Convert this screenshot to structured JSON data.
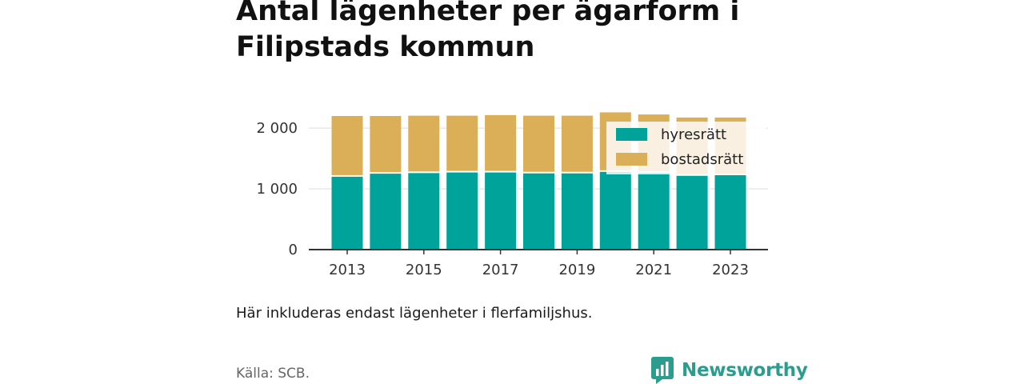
{
  "title": "Antal lägenheter per ägarform i Filipstads kommun",
  "note": "Här inkluderas endast lägenheter i flerfamiljshus.",
  "source": "Källa: SCB.",
  "brand": {
    "name": "Newsworthy",
    "icon": "newsworthy-logo-icon",
    "color": "#2a9d8f"
  },
  "colors": {
    "hyresratt": "#00a39a",
    "bostadsratt": "#dbae58",
    "axis": "#333333",
    "grid": "#dddddd"
  },
  "chart_data": {
    "type": "bar",
    "stacked": true,
    "title": "Antal lägenheter per ägarform i Filipstads kommun",
    "categories": [
      "2013",
      "2014",
      "2015",
      "2016",
      "2017",
      "2018",
      "2019",
      "2020",
      "2021",
      "2022",
      "2023"
    ],
    "x_tick_labels": [
      "2013",
      "2015",
      "2017",
      "2019",
      "2021",
      "2023"
    ],
    "y_ticks": [
      0,
      1000,
      2000
    ],
    "y_tick_labels": [
      "0",
      "1 000",
      "2 000"
    ],
    "ylim": [
      0,
      2200
    ],
    "grid": "horizontal",
    "legend_placement": "top-right",
    "series": [
      {
        "name": "hyresrätt",
        "color": "#00a39a",
        "values": [
          1200,
          1250,
          1260,
          1270,
          1270,
          1255,
          1255,
          1280,
          1265,
          1215,
          1225
        ]
      },
      {
        "name": "bostadsrätt",
        "color": "#dbae58",
        "values": [
          1000,
          950,
          945,
          935,
          945,
          950,
          950,
          980,
          960,
          960,
          950
        ]
      }
    ]
  }
}
